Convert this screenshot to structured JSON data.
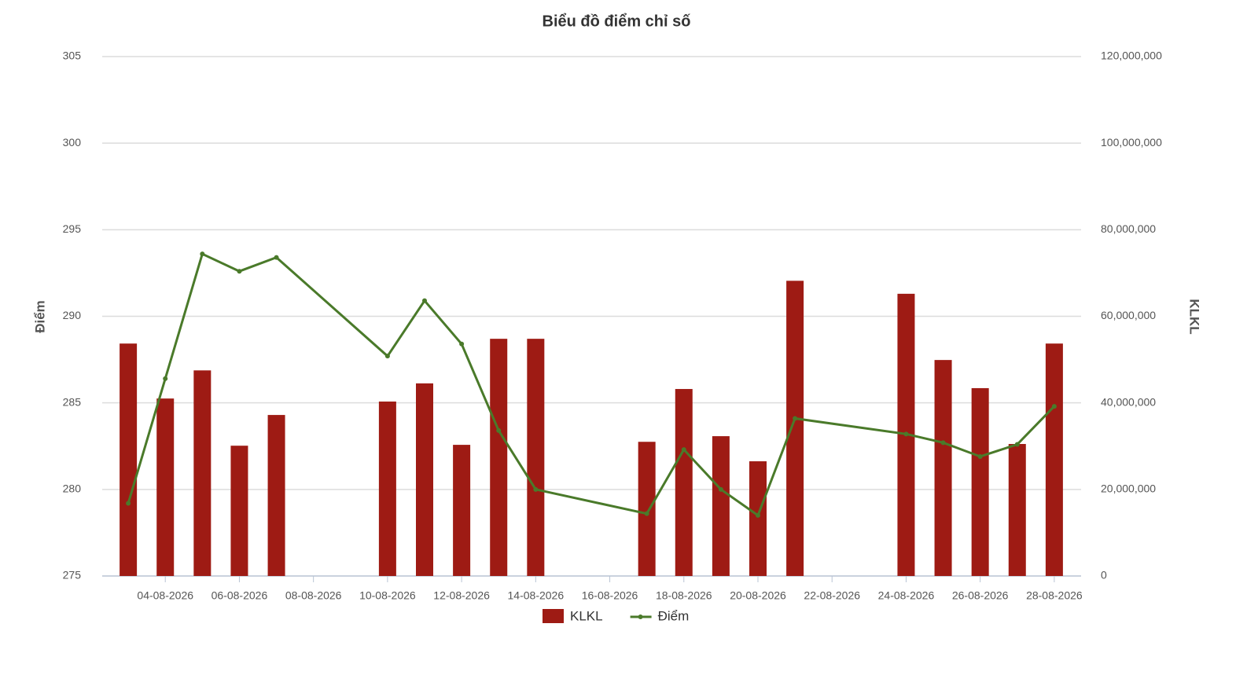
{
  "chart_data": {
    "type": "bar",
    "title": "Biểu đồ điểm chỉ số",
    "x": [
      "03-08-2026",
      "04-08-2026",
      "05-08-2026",
      "06-08-2026",
      "07-08-2026",
      "10-08-2026",
      "11-08-2026",
      "12-08-2026",
      "13-08-2026",
      "14-08-2026",
      "17-08-2026",
      "18-08-2026",
      "19-08-2026",
      "20-08-2026",
      "21-08-2026",
      "24-08-2026",
      "25-08-2026",
      "26-08-2026",
      "27-08-2026",
      "28-08-2026"
    ],
    "xlim": [
      "02-08-2026",
      "29-08-2026"
    ],
    "xticks": [
      "04-08-2026",
      "06-08-2026",
      "08-08-2026",
      "10-08-2026",
      "12-08-2026",
      "14-08-2026",
      "16-08-2026",
      "18-08-2026",
      "20-08-2026",
      "22-08-2026",
      "24-08-2026",
      "26-08-2026",
      "28-08-2026"
    ],
    "series": [
      {
        "name": "KLKL",
        "type": "bar",
        "axis": "y2",
        "color": "#9e1b14",
        "values": [
          53700000,
          41000000,
          47500000,
          30100000,
          37200000,
          40300000,
          44500000,
          30300000,
          54800000,
          54800000,
          31000000,
          43200000,
          32300000,
          26500000,
          68200000,
          65200000,
          49900000,
          43400000,
          30500000,
          53700000
        ]
      },
      {
        "name": "Điểm",
        "type": "line",
        "color": "#4a7a2a",
        "values": [
          279.2,
          286.4,
          293.6,
          292.6,
          293.4,
          287.7,
          290.9,
          288.4,
          283.4,
          280.0,
          278.6,
          282.3,
          280.0,
          278.5,
          284.1,
          283.2,
          282.7,
          281.9,
          282.6,
          284.8
        ]
      }
    ],
    "ylabel": "Điểm",
    "y2label": "KLKL",
    "ylim": [
      275,
      305
    ],
    "yticks": [
      275,
      280,
      285,
      290,
      295,
      300,
      305
    ],
    "y2lim": [
      0,
      120000000
    ],
    "y2ticks": [
      0,
      {
        "value": 20000000,
        "label": "20,000,000"
      },
      {
        "value": 40000000,
        "label": "40,000,000"
      },
      {
        "value": 60000000,
        "label": "60,000,000"
      },
      {
        "value": 80000000,
        "label": "80,000,000"
      },
      {
        "value": 100000000,
        "label": "100,000,000"
      },
      {
        "value": 120000000,
        "label": "120,000,000"
      }
    ],
    "grid": true,
    "legend": "bottom"
  }
}
